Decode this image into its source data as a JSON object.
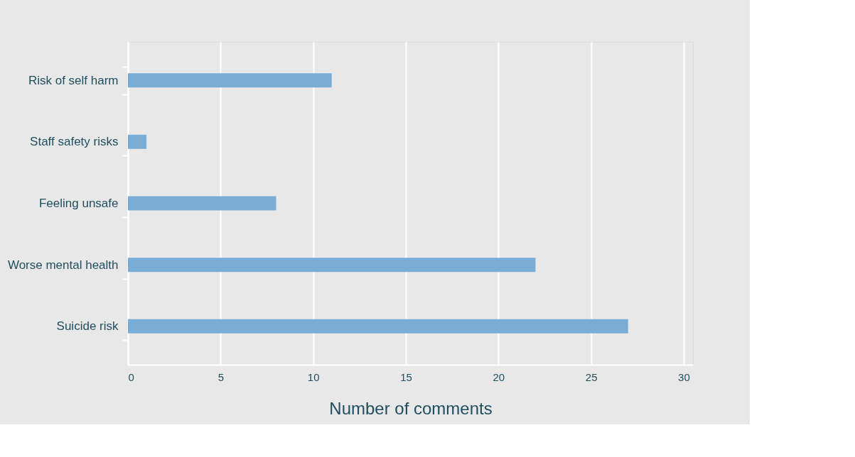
{
  "chart_data": {
    "type": "bar",
    "orientation": "horizontal",
    "xlabel": "Number of comments",
    "categories": [
      "Risk of self harm",
      "Staff safety risks",
      "Feeling unsafe",
      "Worse mental health",
      "Suicide risk"
    ],
    "values": [
      11,
      1,
      8,
      22,
      27
    ],
    "color": "#7aadd6",
    "xlim": [
      0,
      30.5
    ],
    "xticks": [
      0,
      5,
      10,
      15,
      20,
      25,
      30
    ],
    "grid": "x"
  }
}
